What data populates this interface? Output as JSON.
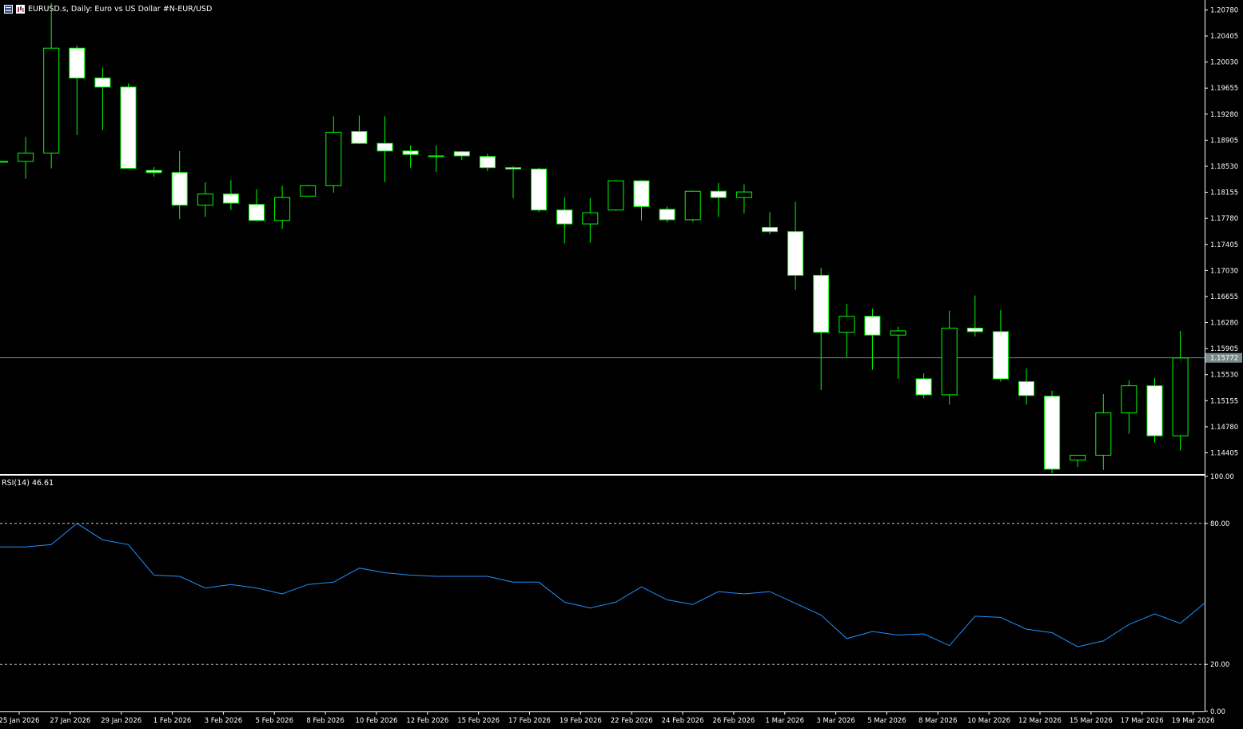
{
  "header": {
    "symbol": "EURUSD.s",
    "timeframe": "Daily",
    "description": "Euro vs US Dollar #N-EUR/USD",
    "title": "EURUSD.s, Daily:  Euro vs US Dollar #N-EUR/USD"
  },
  "rsi_panel": {
    "label": "RSI(14) 46.61",
    "levels": [
      "100.00",
      "80.00",
      "20.00",
      "0.00"
    ]
  },
  "colors": {
    "background": "#000000",
    "candle_outline": "#00ff00",
    "bull_body": "#000000",
    "bear_body": "#ffffff",
    "bid_line": "#7b8a8b",
    "rsi_line": "#1e90ff",
    "axis": "#ffffff",
    "current_price_tag_bg": "#7b8a8b"
  },
  "chart_data": [
    {
      "type": "candlestick",
      "title": "EURUSD.s, Daily:  Euro vs US Dollar #N-EUR/USD",
      "ylim": [
        1.141,
        1.209
      ],
      "y_ticks": [
        "1.20780",
        "1.20405",
        "1.20030",
        "1.19655",
        "1.19280",
        "1.18905",
        "1.18530",
        "1.18155",
        "1.17780",
        "1.17405",
        "1.17030",
        "1.16655",
        "1.16280",
        "1.15905",
        "1.15530",
        "1.15155",
        "1.14780",
        "1.14405"
      ],
      "current_price": "1.15772",
      "x_ticks": [
        "25 Jan 2026",
        "27 Jan 2026",
        "29 Jan 2026",
        "1 Feb 2026",
        "3 Feb 2026",
        "5 Feb 2026",
        "8 Feb 2026",
        "10 Feb 2026",
        "12 Feb 2026",
        "15 Feb 2026",
        "17 Feb 2026",
        "19 Feb 2026",
        "22 Feb 2026",
        "24 Feb 2026",
        "26 Feb 2026",
        "1 Mar 2026",
        "3 Mar 2026",
        "5 Mar 2026",
        "8 Mar 2026",
        "10 Mar 2026",
        "12 Mar 2026",
        "15 Mar 2026",
        "17 Mar 2026",
        "19 Mar 2026"
      ],
      "candles": [
        {
          "o": 1.186,
          "h": 1.186,
          "l": 1.186,
          "c": 1.186
        },
        {
          "o": 1.186,
          "h": 1.1895,
          "l": 1.1835,
          "c": 1.1872
        },
        {
          "o": 1.1872,
          "h": 1.2088,
          "l": 1.185,
          "c": 1.2023
        },
        {
          "o": 1.2023,
          "h": 1.2027,
          "l": 1.1898,
          "c": 1.198
        },
        {
          "o": 1.198,
          "h": 1.1995,
          "l": 1.1905,
          "c": 1.1967
        },
        {
          "o": 1.1967,
          "h": 1.1972,
          "l": 1.185,
          "c": 1.185
        },
        {
          "o": 1.1847,
          "h": 1.1852,
          "l": 1.1838,
          "c": 1.1844
        },
        {
          "o": 1.1844,
          "h": 1.1875,
          "l": 1.1777,
          "c": 1.1797
        },
        {
          "o": 1.1797,
          "h": 1.183,
          "l": 1.178,
          "c": 1.1813
        },
        {
          "o": 1.1813,
          "h": 1.1833,
          "l": 1.179,
          "c": 1.18
        },
        {
          "o": 1.1798,
          "h": 1.182,
          "l": 1.1774,
          "c": 1.1775
        },
        {
          "o": 1.1775,
          "h": 1.1825,
          "l": 1.1763,
          "c": 1.1808
        },
        {
          "o": 1.181,
          "h": 1.1826,
          "l": 1.181,
          "c": 1.1825
        },
        {
          "o": 1.1825,
          "h": 1.1925,
          "l": 1.1815,
          "c": 1.1902
        },
        {
          "o": 1.1903,
          "h": 1.1926,
          "l": 1.1885,
          "c": 1.1886
        },
        {
          "o": 1.1886,
          "h": 1.1925,
          "l": 1.183,
          "c": 1.1875
        },
        {
          "o": 1.1875,
          "h": 1.1883,
          "l": 1.1851,
          "c": 1.187
        },
        {
          "o": 1.1868,
          "h": 1.1883,
          "l": 1.1845,
          "c": 1.1868
        },
        {
          "o": 1.1874,
          "h": 1.1875,
          "l": 1.1862,
          "c": 1.1868
        },
        {
          "o": 1.1867,
          "h": 1.1871,
          "l": 1.1846,
          "c": 1.1851
        },
        {
          "o": 1.1851,
          "h": 1.1853,
          "l": 1.1807,
          "c": 1.1849
        },
        {
          "o": 1.1849,
          "h": 1.1851,
          "l": 1.1787,
          "c": 1.179
        },
        {
          "o": 1.179,
          "h": 1.1808,
          "l": 1.1742,
          "c": 1.177
        },
        {
          "o": 1.177,
          "h": 1.1807,
          "l": 1.1743,
          "c": 1.1786
        },
        {
          "o": 1.179,
          "h": 1.1833,
          "l": 1.1789,
          "c": 1.1832
        },
        {
          "o": 1.1832,
          "h": 1.1833,
          "l": 1.1775,
          "c": 1.1795
        },
        {
          "o": 1.1791,
          "h": 1.1795,
          "l": 1.1772,
          "c": 1.1776
        },
        {
          "o": 1.1776,
          "h": 1.1818,
          "l": 1.1773,
          "c": 1.1817
        },
        {
          "o": 1.1817,
          "h": 1.1829,
          "l": 1.178,
          "c": 1.1808
        },
        {
          "o": 1.1808,
          "h": 1.1827,
          "l": 1.1785,
          "c": 1.1816
        },
        {
          "o": 1.1765,
          "h": 1.1787,
          "l": 1.1755,
          "c": 1.1759
        },
        {
          "o": 1.1759,
          "h": 1.1802,
          "l": 1.1675,
          "c": 1.1696
        },
        {
          "o": 1.1696,
          "h": 1.1707,
          "l": 1.1531,
          "c": 1.1614
        },
        {
          "o": 1.1614,
          "h": 1.1655,
          "l": 1.1578,
          "c": 1.1637
        },
        {
          "o": 1.1637,
          "h": 1.1648,
          "l": 1.156,
          "c": 1.161
        },
        {
          "o": 1.161,
          "h": 1.1622,
          "l": 1.1547,
          "c": 1.1616
        },
        {
          "o": 1.1547,
          "h": 1.1555,
          "l": 1.1519,
          "c": 1.1524
        },
        {
          "o": 1.1524,
          "h": 1.1645,
          "l": 1.151,
          "c": 1.162
        },
        {
          "o": 1.162,
          "h": 1.1667,
          "l": 1.1608,
          "c": 1.1615
        },
        {
          "o": 1.1615,
          "h": 1.1646,
          "l": 1.1543,
          "c": 1.1547
        },
        {
          "o": 1.1543,
          "h": 1.1562,
          "l": 1.151,
          "c": 1.1523
        },
        {
          "o": 1.1522,
          "h": 1.153,
          "l": 1.1411,
          "c": 1.1417
        },
        {
          "o": 1.143,
          "h": 1.1437,
          "l": 1.142,
          "c": 1.1437
        },
        {
          "o": 1.1437,
          "h": 1.1525,
          "l": 1.1416,
          "c": 1.1498
        },
        {
          "o": 1.1498,
          "h": 1.1545,
          "l": 1.1468,
          "c": 1.1537
        },
        {
          "o": 1.1537,
          "h": 1.1548,
          "l": 1.1455,
          "c": 1.1465
        },
        {
          "o": 1.1465,
          "h": 1.1616,
          "l": 1.1444,
          "c": 1.1577
        }
      ]
    },
    {
      "type": "line",
      "title": "RSI(14) 46.61",
      "ylim": [
        0,
        100
      ],
      "y_ticks": [
        "100.00",
        "80.00",
        "20.00",
        "0.00"
      ],
      "levels": [
        80,
        20
      ],
      "series": [
        {
          "name": "RSI(14)",
          "values": [
            70.0,
            71.0,
            80.0,
            73.0,
            71.0,
            58.0,
            57.5,
            52.5,
            54.0,
            52.5,
            50.0,
            54.0,
            55.0,
            61.0,
            59.0,
            58.0,
            57.5,
            57.5,
            57.5,
            55.0,
            55.0,
            46.5,
            44.0,
            46.5,
            53.0,
            47.5,
            45.5,
            51.0,
            50.0,
            51.0,
            46.0,
            41.0,
            31.0,
            34.0,
            32.5,
            33.0,
            28.0,
            40.5,
            40.0,
            35.0,
            33.5,
            27.5,
            30.0,
            37.0,
            41.5,
            37.5,
            46.61
          ]
        }
      ]
    }
  ]
}
